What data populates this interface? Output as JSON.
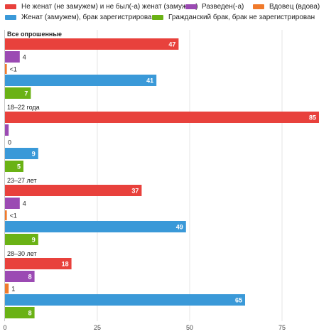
{
  "chart_data": {
    "type": "bar",
    "orientation": "horizontal",
    "series": [
      {
        "name": "Не женат (не замужем) и не был(-а) женат (замужем)",
        "color": "#e8413c"
      },
      {
        "name": "Разведен(-а)",
        "color": "#9b4ab3"
      },
      {
        "name": "Вдовец (вдова)",
        "color": "#f07a2b"
      },
      {
        "name": "Женат (замужем), брак зарегистрирован",
        "color": "#3a99d8"
      },
      {
        "name": "Гражданский брак, брак не зарегистрирован",
        "color": "#6ab215"
      }
    ],
    "groups": [
      {
        "label": "Все опрошенные",
        "values": [
          47,
          4,
          0.5,
          41,
          7
        ],
        "labels": [
          "47",
          "4",
          "<1",
          "41",
          "7"
        ]
      },
      {
        "label": "18–22 года",
        "values": [
          85,
          1,
          0,
          9,
          5
        ],
        "labels": [
          "85",
          "",
          "0",
          "9",
          "5"
        ]
      },
      {
        "label": "23–27 лет",
        "values": [
          37,
          4,
          0.5,
          49,
          9
        ],
        "labels": [
          "37",
          "4",
          "<1",
          "49",
          "9"
        ]
      },
      {
        "label": "28–30 лет",
        "values": [
          18,
          8,
          1,
          65,
          8
        ],
        "labels": [
          "18",
          "8",
          "1",
          "65",
          "8"
        ]
      }
    ],
    "xticks": [
      0,
      25,
      50,
      75
    ],
    "xlim": [
      0,
      88
    ],
    "grid": true,
    "legend_position": "top"
  }
}
